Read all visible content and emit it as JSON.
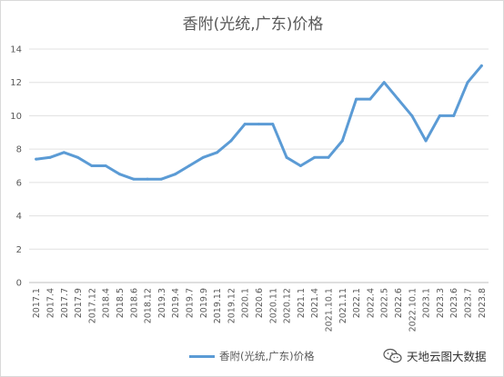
{
  "chart_data": {
    "type": "line",
    "title": "香附(光统,广东)价格",
    "xlabel": "",
    "ylabel": "",
    "ylim": [
      0,
      14
    ],
    "yticks": [
      0,
      2,
      4,
      6,
      8,
      10,
      12,
      14
    ],
    "grid": true,
    "legend_position": "bottom",
    "categories": [
      "2017.1",
      "2017.4",
      "2017.7",
      "2017.9",
      "2017.12",
      "2018.4",
      "2018.5",
      "2018.6",
      "2018.12",
      "2019.3",
      "2019.4",
      "2019.7",
      "2019.9",
      "2019.11",
      "2019.12",
      "2020.1",
      "2020.6",
      "2020.11",
      "2020.12",
      "2021.1",
      "2021.4",
      "2021.10.1",
      "2021.11",
      "2022.1",
      "2022.4",
      "2022.5",
      "2022.6",
      "2022.10.1",
      "2023.1",
      "2023.3",
      "2023.6",
      "2023.7",
      "2023.8"
    ],
    "series": [
      {
        "name": "香附(光统,广东)价格",
        "color": "#5b9bd5",
        "values": [
          7.4,
          7.5,
          7.8,
          7.5,
          7.0,
          7.0,
          6.5,
          6.2,
          6.2,
          6.2,
          6.5,
          7.0,
          7.5,
          7.8,
          8.5,
          9.5,
          9.5,
          9.5,
          7.5,
          7.0,
          7.5,
          7.5,
          8.5,
          11.0,
          11.0,
          12.0,
          11.0,
          10.0,
          8.5,
          10.0,
          10.0,
          12.0,
          13.0
        ]
      }
    ]
  },
  "watermark": {
    "text": "天地云图大数据",
    "icon": "wechat-icon"
  }
}
